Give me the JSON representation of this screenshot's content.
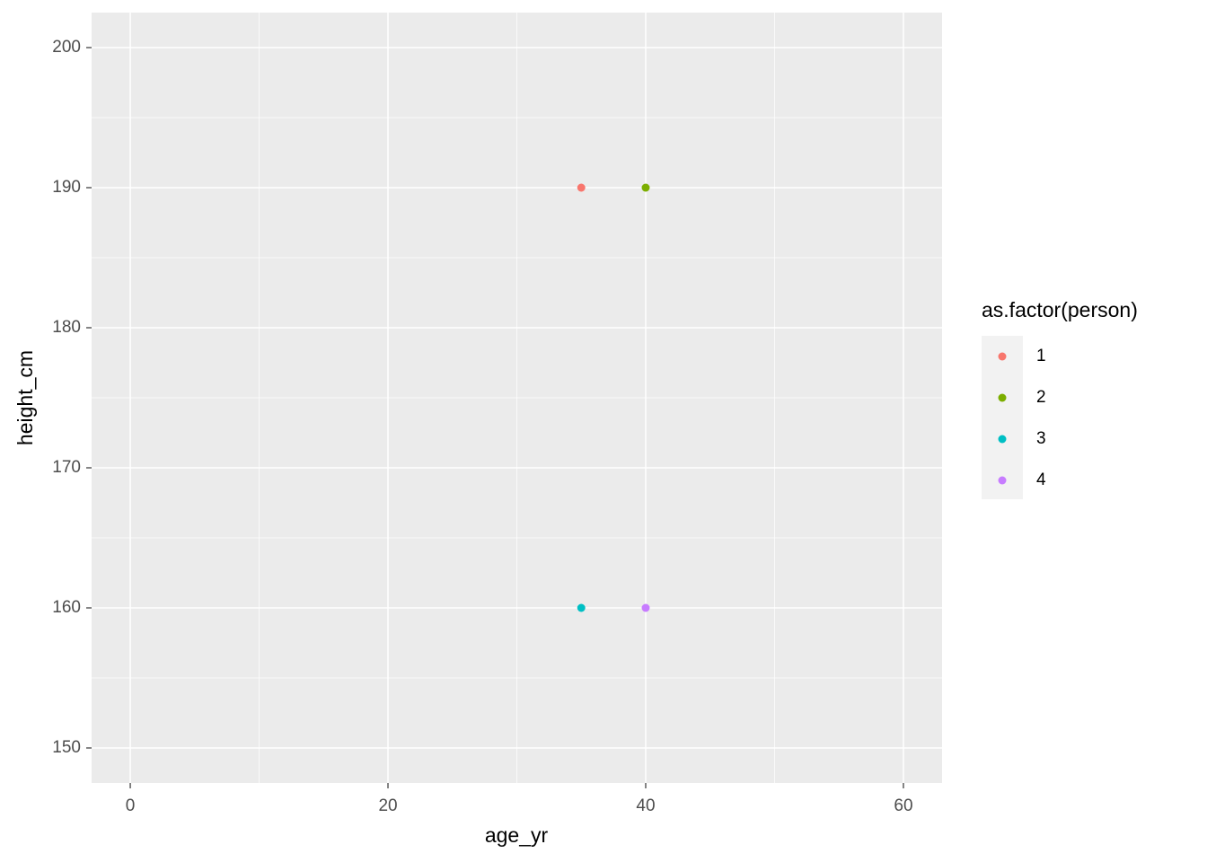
{
  "chart_data": {
    "type": "scatter",
    "x_label": "age_yr",
    "y_label": "height_cm",
    "legend_title": "as.factor(person)",
    "series": [
      {
        "name": "1",
        "color": "#F8766D",
        "x": [
          35
        ],
        "values": [
          190
        ]
      },
      {
        "name": "2",
        "color": "#7CAE00",
        "x": [
          40
        ],
        "values": [
          190
        ]
      },
      {
        "name": "3",
        "color": "#00BFC4",
        "x": [
          35
        ],
        "values": [
          160
        ]
      },
      {
        "name": "4",
        "color": "#C77CFF",
        "x": [
          40
        ],
        "values": [
          160
        ]
      }
    ],
    "xlim": [
      -3,
      63
    ],
    "xticks": [
      0,
      20,
      40,
      60
    ],
    "ylim": [
      147.5,
      202.5
    ],
    "yticks": [
      150,
      160,
      170,
      180,
      190,
      200
    ],
    "grid": true,
    "legend": "right"
  }
}
